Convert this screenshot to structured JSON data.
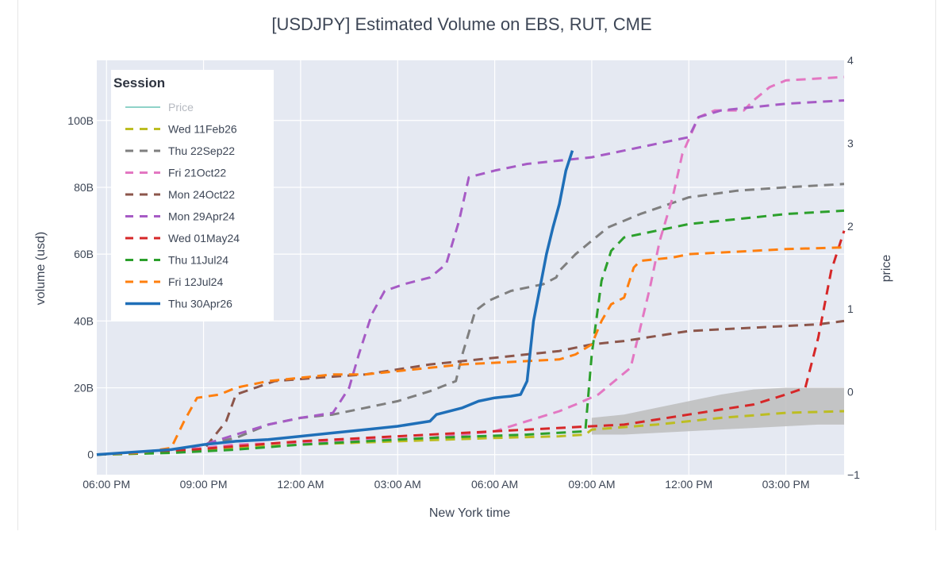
{
  "chart_data": {
    "type": "line",
    "title": "[USDJPY] Estimated Volume on EBS, RUT, CME",
    "xlabel": "New York time",
    "ylabel": "volume (usd)",
    "y2label": "price",
    "x_unit": "hours since 06:00 PM",
    "x_ticks": [
      "06:00 PM",
      "09:00 PM",
      "12:00 AM",
      "03:00 AM",
      "06:00 AM",
      "09:00 AM",
      "12:00 PM",
      "03:00 PM"
    ],
    "xlim": [
      -0.3,
      22.8
    ],
    "y_ticks": [
      "0",
      "20B",
      "40B",
      "60B",
      "80B",
      "100B"
    ],
    "ylim": [
      -6,
      118
    ],
    "y2_ticks": [
      "−1",
      "0",
      "1",
      "2",
      "3",
      "4"
    ],
    "y2lim": [
      -1,
      4
    ],
    "legend": {
      "title": "Session",
      "position": "top-left"
    },
    "series": [
      {
        "name": "Price",
        "color": "#8fd3c8",
        "dash": "solid",
        "points": []
      },
      {
        "name": "Wed 11Feb26",
        "color": "#bcbd22",
        "dash": "dash",
        "points": [
          [
            -0.3,
            0
          ],
          [
            1,
            0.3
          ],
          [
            3,
            1.5
          ],
          [
            6,
            3
          ],
          [
            9,
            4
          ],
          [
            12,
            5
          ],
          [
            14,
            5.5
          ],
          [
            14.8,
            6
          ],
          [
            15,
            7.5
          ],
          [
            17,
            9
          ],
          [
            19,
            11
          ],
          [
            21,
            12.5
          ],
          [
            22.8,
            13
          ]
        ]
      },
      {
        "name": "Thu 22Sep22",
        "color": "#7f7f7f",
        "dash": "dash",
        "points": [
          [
            -0.3,
            0
          ],
          [
            2,
            1
          ],
          [
            3,
            3
          ],
          [
            4,
            5
          ],
          [
            5,
            9
          ],
          [
            6,
            11
          ],
          [
            7,
            12
          ],
          [
            8,
            14
          ],
          [
            9,
            16
          ],
          [
            10,
            19
          ],
          [
            10.8,
            22
          ],
          [
            11,
            30
          ],
          [
            11.4,
            43
          ],
          [
            11.8,
            46
          ],
          [
            12.5,
            49
          ],
          [
            13.5,
            51
          ],
          [
            13.9,
            53
          ],
          [
            14,
            55
          ],
          [
            14.5,
            60
          ],
          [
            15,
            64
          ],
          [
            15.5,
            68
          ],
          [
            16.5,
            72
          ],
          [
            18,
            77
          ],
          [
            19.5,
            79
          ],
          [
            21,
            80
          ],
          [
            22.8,
            81
          ]
        ]
      },
      {
        "name": "Fri 21Oct22",
        "color": "#e377c2",
        "dash": "dash",
        "points": [
          [
            -0.3,
            0
          ],
          [
            2,
            1
          ],
          [
            4,
            3
          ],
          [
            7,
            4
          ],
          [
            10,
            5
          ],
          [
            12,
            7
          ],
          [
            13,
            10
          ],
          [
            14,
            13
          ],
          [
            14.5,
            15
          ],
          [
            15.2,
            18
          ],
          [
            16.2,
            26
          ],
          [
            16.5,
            38
          ],
          [
            16.8,
            50
          ],
          [
            17.1,
            64
          ],
          [
            17.5,
            77
          ],
          [
            17.8,
            90
          ],
          [
            18.3,
            101
          ],
          [
            18.8,
            103
          ],
          [
            19.7,
            103
          ],
          [
            20,
            106
          ],
          [
            20.5,
            110
          ],
          [
            21,
            112
          ],
          [
            22.8,
            113
          ]
        ]
      },
      {
        "name": "Mon 24Oct22",
        "color": "#8c564b",
        "dash": "dash",
        "points": [
          [
            -0.3,
            0
          ],
          [
            1,
            0.5
          ],
          [
            3,
            1.5
          ],
          [
            3.7,
            10
          ],
          [
            4,
            18
          ],
          [
            5.2,
            22
          ],
          [
            6.5,
            23
          ],
          [
            8,
            24
          ],
          [
            10,
            27
          ],
          [
            12,
            29
          ],
          [
            14,
            31
          ],
          [
            15,
            33
          ],
          [
            16,
            34
          ],
          [
            18,
            37
          ],
          [
            20,
            38
          ],
          [
            22,
            39
          ],
          [
            22.8,
            40
          ]
        ]
      },
      {
        "name": "Mon 29Apr24",
        "color": "#a65bc5",
        "dash": "dash",
        "points": [
          [
            -0.3,
            0
          ],
          [
            2,
            1
          ],
          [
            3,
            3
          ],
          [
            4,
            6
          ],
          [
            5,
            9
          ],
          [
            6,
            11
          ],
          [
            7,
            12.5
          ],
          [
            7.5,
            20
          ],
          [
            7.8,
            30
          ],
          [
            8.2,
            42
          ],
          [
            8.6,
            49
          ],
          [
            9.2,
            51
          ],
          [
            10,
            53
          ],
          [
            10.5,
            57
          ],
          [
            10.9,
            70
          ],
          [
            11.2,
            83
          ],
          [
            12,
            85
          ],
          [
            13,
            87
          ],
          [
            14,
            88
          ],
          [
            15,
            89
          ],
          [
            16,
            91
          ],
          [
            17,
            93
          ],
          [
            18,
            95
          ],
          [
            18.3,
            101
          ],
          [
            19,
            103
          ],
          [
            20,
            104
          ],
          [
            21,
            105
          ],
          [
            22.8,
            106
          ]
        ]
      },
      {
        "name": "Wed 01May24",
        "color": "#d62728",
        "dash": "dash",
        "points": [
          [
            -0.3,
            0
          ],
          [
            2,
            1
          ],
          [
            4,
            2.5
          ],
          [
            6,
            4
          ],
          [
            8,
            5
          ],
          [
            10,
            6
          ],
          [
            12,
            7
          ],
          [
            14,
            8
          ],
          [
            16,
            9
          ],
          [
            18,
            12
          ],
          [
            20,
            15
          ],
          [
            21,
            18
          ],
          [
            21.6,
            20
          ],
          [
            22,
            35
          ],
          [
            22.4,
            55
          ],
          [
            22.8,
            67
          ]
        ]
      },
      {
        "name": "Thu 11Jul24",
        "color": "#2ca02c",
        "dash": "dash",
        "points": [
          [
            -0.3,
            0
          ],
          [
            2,
            0.5
          ],
          [
            4,
            1.5
          ],
          [
            6,
            3
          ],
          [
            8,
            4
          ],
          [
            10,
            5
          ],
          [
            13,
            6
          ],
          [
            14.8,
            7
          ],
          [
            15,
            30
          ],
          [
            15.3,
            52
          ],
          [
            15.6,
            61
          ],
          [
            16,
            65
          ],
          [
            17,
            67
          ],
          [
            18,
            69
          ],
          [
            19,
            70
          ],
          [
            20,
            71
          ],
          [
            21,
            72
          ],
          [
            22.8,
            73
          ]
        ]
      },
      {
        "name": "Fri 12Jul24",
        "color": "#ff7f0e",
        "dash": "dash",
        "points": [
          [
            -0.3,
            0
          ],
          [
            1,
            0.5
          ],
          [
            2,
            2
          ],
          [
            2.4,
            10
          ],
          [
            2.8,
            17
          ],
          [
            3.5,
            18
          ],
          [
            4,
            20
          ],
          [
            5,
            22
          ],
          [
            6,
            23
          ],
          [
            7,
            24
          ],
          [
            8,
            24
          ],
          [
            9,
            25
          ],
          [
            10,
            26
          ],
          [
            11,
            27
          ],
          [
            12,
            27.5
          ],
          [
            13,
            28
          ],
          [
            14,
            28.5
          ],
          [
            14.5,
            30
          ],
          [
            15,
            33
          ],
          [
            15.3,
            40
          ],
          [
            15.6,
            45
          ],
          [
            16,
            47
          ],
          [
            16.3,
            56
          ],
          [
            16.5,
            58
          ],
          [
            17.5,
            59
          ],
          [
            18,
            60
          ],
          [
            19,
            60.5
          ],
          [
            20,
            61
          ],
          [
            21,
            61.5
          ],
          [
            22.8,
            62
          ]
        ]
      },
      {
        "name": "Thu 30Apr26",
        "color": "#1f6fb8",
        "dash": "solid",
        "points": [
          [
            -0.3,
            0
          ],
          [
            2,
            1.5
          ],
          [
            3,
            3
          ],
          [
            4,
            4
          ],
          [
            5,
            4.5
          ],
          [
            6,
            5.5
          ],
          [
            7,
            6.5
          ],
          [
            8,
            7.5
          ],
          [
            9,
            8.5
          ],
          [
            10,
            10
          ],
          [
            10.2,
            12
          ],
          [
            11,
            14
          ],
          [
            11.5,
            16
          ],
          [
            12,
            17
          ],
          [
            12.5,
            17.5
          ],
          [
            12.8,
            18
          ],
          [
            13,
            22
          ],
          [
            13.2,
            40
          ],
          [
            13.4,
            50
          ],
          [
            13.6,
            60
          ],
          [
            13.8,
            68
          ],
          [
            14,
            75
          ],
          [
            14.2,
            85
          ],
          [
            14.4,
            91
          ]
        ]
      }
    ],
    "band": {
      "color": "#bdbdbd",
      "upper": [
        [
          15,
          11
        ],
        [
          16,
          12
        ],
        [
          17,
          14
        ],
        [
          18,
          16
        ],
        [
          19,
          18
        ],
        [
          20,
          19.5
        ],
        [
          21,
          20
        ],
        [
          22,
          20
        ],
        [
          22.8,
          20
        ]
      ],
      "lower": [
        [
          22.8,
          9
        ],
        [
          22,
          9
        ],
        [
          21,
          8.5
        ],
        [
          20,
          8
        ],
        [
          19,
          7.5
        ],
        [
          18,
          7
        ],
        [
          17,
          6.5
        ],
        [
          16,
          6
        ],
        [
          15,
          6
        ]
      ]
    }
  }
}
